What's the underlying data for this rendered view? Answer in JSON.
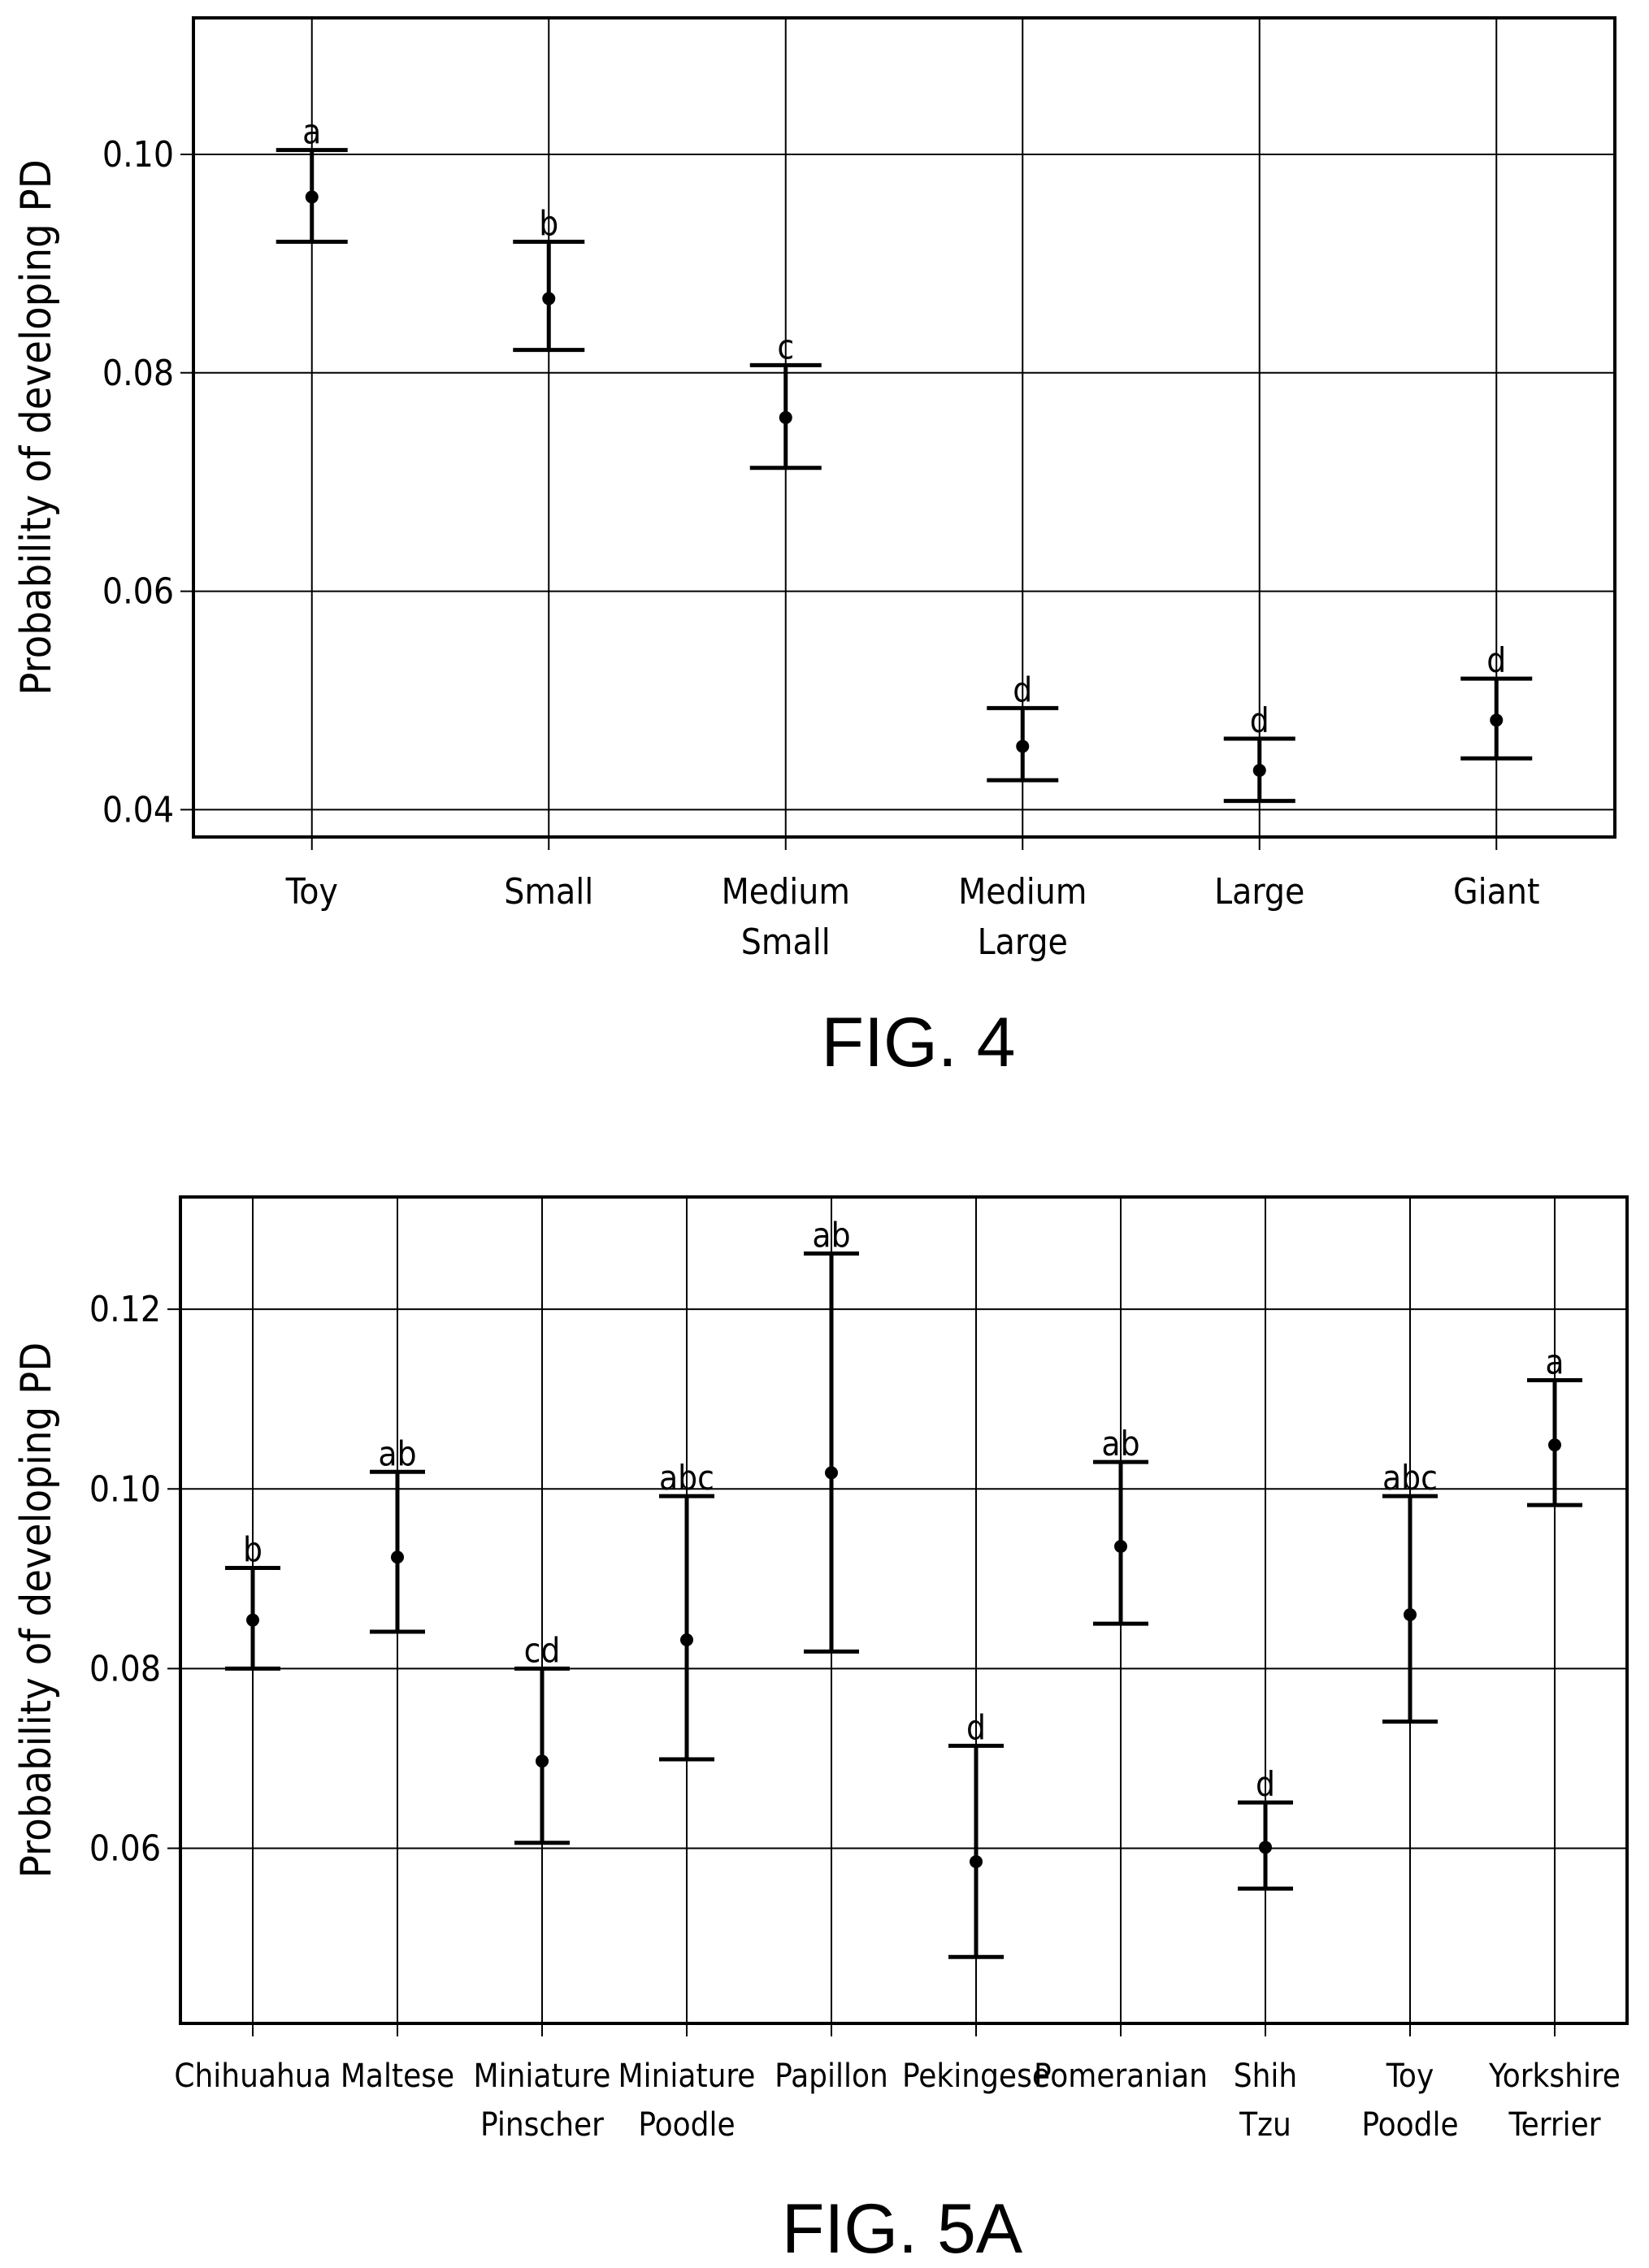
{
  "chart_data": [
    {
      "type": "errorbar",
      "figure_label": "FIG. 4",
      "ylabel": "Probability of developing PD",
      "ylim": [
        0.0375,
        0.1125
      ],
      "yticks": [
        "0.04",
        "0.06",
        "0.08",
        "0.10"
      ],
      "ytick_values": [
        0.04,
        0.06,
        0.08,
        0.1
      ],
      "grid": true,
      "categories": [
        [
          "Toy"
        ],
        [
          "Small"
        ],
        [
          "Medium",
          "Small"
        ],
        [
          "Medium",
          "Large"
        ],
        [
          "Large"
        ],
        [
          "Giant"
        ]
      ],
      "points": [
        {
          "estimate": 0.0961,
          "lower": 0.092,
          "upper": 0.1004,
          "group": "a"
        },
        {
          "estimate": 0.0868,
          "lower": 0.0821,
          "upper": 0.092,
          "group": "b"
        },
        {
          "estimate": 0.0759,
          "lower": 0.0713,
          "upper": 0.0807,
          "group": "c"
        },
        {
          "estimate": 0.0458,
          "lower": 0.0427,
          "upper": 0.0493,
          "group": "d"
        },
        {
          "estimate": 0.0436,
          "lower": 0.0408,
          "upper": 0.0465,
          "group": "d"
        },
        {
          "estimate": 0.0482,
          "lower": 0.0447,
          "upper": 0.052,
          "group": "d"
        }
      ]
    },
    {
      "type": "errorbar",
      "figure_label": "FIG. 5A",
      "ylabel": "Probability of developing PD",
      "ylim": [
        0.0405,
        0.1325
      ],
      "yticks": [
        "0.06",
        "0.08",
        "0.10",
        "0.12"
      ],
      "ytick_values": [
        0.06,
        0.08,
        0.1,
        0.12
      ],
      "grid": true,
      "categories": [
        [
          "Chihuahua"
        ],
        [
          "Maltese"
        ],
        [
          "Miniature",
          "Pinscher"
        ],
        [
          "Miniature",
          "Poodle"
        ],
        [
          "Papillon"
        ],
        [
          "Pekingese"
        ],
        [
          "Pomeranian"
        ],
        [
          "Shih",
          "Tzu"
        ],
        [
          "Toy",
          "Poodle"
        ],
        [
          "Yorkshire",
          "Terrier"
        ]
      ],
      "points": [
        {
          "estimate": 0.0854,
          "lower": 0.08,
          "upper": 0.0912,
          "group": "b"
        },
        {
          "estimate": 0.0924,
          "lower": 0.0841,
          "upper": 0.1019,
          "group": "ab"
        },
        {
          "estimate": 0.0697,
          "lower": 0.0606,
          "upper": 0.08,
          "group": "cd"
        },
        {
          "estimate": 0.0832,
          "lower": 0.0699,
          "upper": 0.0992,
          "group": "abc"
        },
        {
          "estimate": 0.1018,
          "lower": 0.0819,
          "upper": 0.1262,
          "group": "ab"
        },
        {
          "estimate": 0.0585,
          "lower": 0.0479,
          "upper": 0.0714,
          "group": "d"
        },
        {
          "estimate": 0.0936,
          "lower": 0.085,
          "upper": 0.103,
          "group": "ab"
        },
        {
          "estimate": 0.0601,
          "lower": 0.0555,
          "upper": 0.0651,
          "group": "d"
        },
        {
          "estimate": 0.086,
          "lower": 0.0741,
          "upper": 0.0992,
          "group": "abc"
        },
        {
          "estimate": 0.1049,
          "lower": 0.0982,
          "upper": 0.1121,
          "group": "a"
        }
      ]
    }
  ]
}
